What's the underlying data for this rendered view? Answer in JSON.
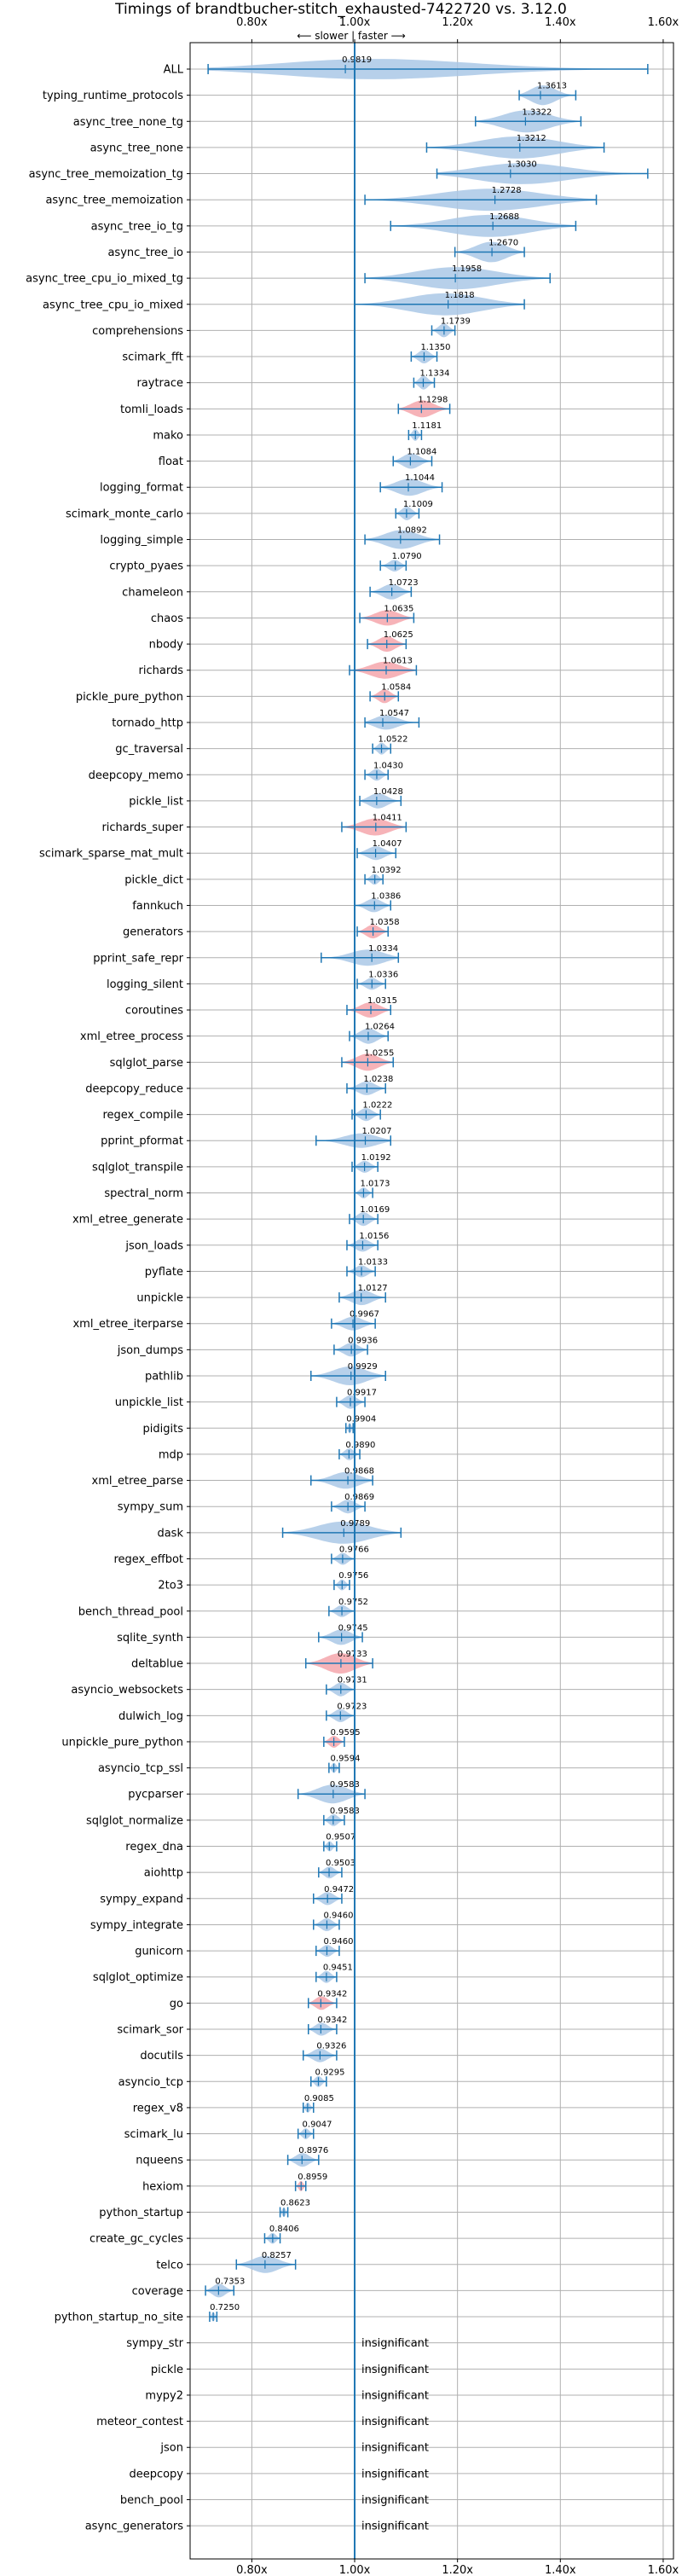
{
  "chart_data": {
    "type": "violin",
    "title": "Timings of brandtbucher-stitch_exhausted-7422720 vs. 3.12.0",
    "direction_label": "⟵ slower | faster ⟶",
    "x_ticks": [
      "0.80x",
      "1.00x",
      "1.20x",
      "1.40x",
      "1.60x"
    ],
    "x_tick_values": [
      0.8,
      1.0,
      1.2,
      1.4,
      1.6
    ],
    "xlim": [
      0.68,
      1.62
    ],
    "reference_line": 1.0,
    "grid": true,
    "colors": {
      "faster": "#aac8e6",
      "slower": "#f4a6ab",
      "line": "#1f77b4",
      "grid": "#b0b0b0"
    },
    "insignificant_label": "insignificant",
    "rows": [
      {
        "name": "ALL",
        "value": 0.9819,
        "min": 0.715,
        "max": 1.57,
        "width": 0.06,
        "highlight": false
      },
      {
        "name": "typing_runtime_protocols",
        "value": 1.3613,
        "min": 1.32,
        "max": 1.43,
        "width": 0.04,
        "highlight": false
      },
      {
        "name": "async_tree_none_tg",
        "value": 1.3322,
        "min": 1.235,
        "max": 1.44,
        "width": 0.05,
        "highlight": false
      },
      {
        "name": "async_tree_none",
        "value": 1.3212,
        "min": 1.14,
        "max": 1.485,
        "width": 0.06,
        "highlight": false
      },
      {
        "name": "async_tree_memoization_tg",
        "value": 1.303,
        "min": 1.16,
        "max": 1.57,
        "width": 0.07,
        "highlight": false
      },
      {
        "name": "async_tree_memoization",
        "value": 1.2728,
        "min": 1.02,
        "max": 1.47,
        "width": 0.08,
        "highlight": false
      },
      {
        "name": "async_tree_io_tg",
        "value": 1.2688,
        "min": 1.07,
        "max": 1.43,
        "width": 0.07,
        "highlight": false
      },
      {
        "name": "async_tree_io",
        "value": 1.267,
        "min": 1.195,
        "max": 1.33,
        "width": 0.04,
        "highlight": false
      },
      {
        "name": "async_tree_cpu_io_mixed_tg",
        "value": 1.1958,
        "min": 1.02,
        "max": 1.38,
        "width": 0.07,
        "highlight": false
      },
      {
        "name": "async_tree_cpu_io_mixed",
        "value": 1.1818,
        "min": 1.0,
        "max": 1.33,
        "width": 0.06,
        "highlight": false
      },
      {
        "name": "comprehensions",
        "value": 1.1739,
        "min": 1.15,
        "max": 1.195,
        "width": 0.02,
        "highlight": false
      },
      {
        "name": "scimark_fft",
        "value": 1.135,
        "min": 1.11,
        "max": 1.16,
        "width": 0.02,
        "highlight": false
      },
      {
        "name": "raytrace",
        "value": 1.1334,
        "min": 1.115,
        "max": 1.155,
        "width": 0.02,
        "highlight": false
      },
      {
        "name": "tomli_loads",
        "value": 1.1298,
        "min": 1.085,
        "max": 1.185,
        "width": 0.03,
        "highlight": true
      },
      {
        "name": "mako",
        "value": 1.1181,
        "min": 1.105,
        "max": 1.13,
        "width": 0.015,
        "highlight": false
      },
      {
        "name": "float",
        "value": 1.1084,
        "min": 1.075,
        "max": 1.15,
        "width": 0.025,
        "highlight": false
      },
      {
        "name": "logging_format",
        "value": 1.1044,
        "min": 1.05,
        "max": 1.17,
        "width": 0.03,
        "highlight": false
      },
      {
        "name": "scimark_monte_carlo",
        "value": 1.1009,
        "min": 1.08,
        "max": 1.125,
        "width": 0.02,
        "highlight": false
      },
      {
        "name": "logging_simple",
        "value": 1.0892,
        "min": 1.02,
        "max": 1.165,
        "width": 0.035,
        "highlight": false
      },
      {
        "name": "crypto_pyaes",
        "value": 1.079,
        "min": 1.05,
        "max": 1.1,
        "width": 0.015,
        "highlight": false
      },
      {
        "name": "chameleon",
        "value": 1.0723,
        "min": 1.03,
        "max": 1.11,
        "width": 0.025,
        "highlight": false
      },
      {
        "name": "chaos",
        "value": 1.0635,
        "min": 1.01,
        "max": 1.115,
        "width": 0.025,
        "highlight": true
      },
      {
        "name": "nbody",
        "value": 1.0625,
        "min": 1.025,
        "max": 1.1,
        "width": 0.025,
        "highlight": true
      },
      {
        "name": "richards",
        "value": 1.0613,
        "min": 0.99,
        "max": 1.12,
        "width": 0.03,
        "highlight": true
      },
      {
        "name": "pickle_pure_python",
        "value": 1.0584,
        "min": 1.03,
        "max": 1.085,
        "width": 0.02,
        "highlight": true
      },
      {
        "name": "tornado_http",
        "value": 1.0547,
        "min": 1.02,
        "max": 1.125,
        "width": 0.025,
        "highlight": false
      },
      {
        "name": "gc_traversal",
        "value": 1.0522,
        "min": 1.035,
        "max": 1.07,
        "width": 0.015,
        "highlight": false
      },
      {
        "name": "deepcopy_memo",
        "value": 1.043,
        "min": 1.02,
        "max": 1.065,
        "width": 0.015,
        "highlight": false
      },
      {
        "name": "pickle_list",
        "value": 1.0428,
        "min": 1.01,
        "max": 1.09,
        "width": 0.025,
        "highlight": false
      },
      {
        "name": "richards_super",
        "value": 1.0411,
        "min": 0.975,
        "max": 1.1,
        "width": 0.03,
        "highlight": true
      },
      {
        "name": "scimark_sparse_mat_mult",
        "value": 1.0407,
        "min": 1.005,
        "max": 1.08,
        "width": 0.02,
        "highlight": false
      },
      {
        "name": "pickle_dict",
        "value": 1.0392,
        "min": 1.02,
        "max": 1.055,
        "width": 0.012,
        "highlight": false
      },
      {
        "name": "fannkuch",
        "value": 1.0386,
        "min": 1.0,
        "max": 1.07,
        "width": 0.02,
        "highlight": false
      },
      {
        "name": "generators",
        "value": 1.0358,
        "min": 1.005,
        "max": 1.065,
        "width": 0.02,
        "highlight": true
      },
      {
        "name": "pprint_safe_repr",
        "value": 1.0334,
        "min": 0.935,
        "max": 1.085,
        "width": 0.03,
        "highlight": false
      },
      {
        "name": "logging_silent",
        "value": 1.0336,
        "min": 1.005,
        "max": 1.06,
        "width": 0.015,
        "highlight": false
      },
      {
        "name": "coroutines",
        "value": 1.0315,
        "min": 0.985,
        "max": 1.07,
        "width": 0.025,
        "highlight": true
      },
      {
        "name": "xml_etree_process",
        "value": 1.0264,
        "min": 0.99,
        "max": 1.065,
        "width": 0.025,
        "highlight": false
      },
      {
        "name": "sqlglot_parse",
        "value": 1.0255,
        "min": 0.975,
        "max": 1.075,
        "width": 0.03,
        "highlight": true
      },
      {
        "name": "deepcopy_reduce",
        "value": 1.0238,
        "min": 0.985,
        "max": 1.06,
        "width": 0.02,
        "highlight": false
      },
      {
        "name": "regex_compile",
        "value": 1.0222,
        "min": 0.995,
        "max": 1.05,
        "width": 0.018,
        "highlight": false
      },
      {
        "name": "pprint_pformat",
        "value": 1.0207,
        "min": 0.925,
        "max": 1.07,
        "width": 0.025,
        "highlight": false
      },
      {
        "name": "sqlglot_transpile",
        "value": 1.0192,
        "min": 0.995,
        "max": 1.045,
        "width": 0.015,
        "highlight": false
      },
      {
        "name": "spectral_norm",
        "value": 1.0173,
        "min": 1.0,
        "max": 1.035,
        "width": 0.012,
        "highlight": false
      },
      {
        "name": "xml_etree_generate",
        "value": 1.0169,
        "min": 0.99,
        "max": 1.045,
        "width": 0.02,
        "highlight": false
      },
      {
        "name": "json_loads",
        "value": 1.0156,
        "min": 0.985,
        "max": 1.045,
        "width": 0.018,
        "highlight": false
      },
      {
        "name": "pyflate",
        "value": 1.0133,
        "min": 0.985,
        "max": 1.04,
        "width": 0.015,
        "highlight": false
      },
      {
        "name": "unpickle",
        "value": 1.0127,
        "min": 0.97,
        "max": 1.06,
        "width": 0.025,
        "highlight": false
      },
      {
        "name": "xml_etree_iterparse",
        "value": 0.9967,
        "min": 0.955,
        "max": 1.04,
        "width": 0.02,
        "highlight": false
      },
      {
        "name": "json_dumps",
        "value": 0.9936,
        "min": 0.96,
        "max": 1.025,
        "width": 0.02,
        "highlight": false
      },
      {
        "name": "pathlib",
        "value": 0.9929,
        "min": 0.915,
        "max": 1.06,
        "width": 0.035,
        "highlight": false
      },
      {
        "name": "unpickle_list",
        "value": 0.9917,
        "min": 0.965,
        "max": 1.02,
        "width": 0.02,
        "highlight": false
      },
      {
        "name": "pidigits",
        "value": 0.9904,
        "min": 0.983,
        "max": 0.997,
        "width": 0.01,
        "highlight": false
      },
      {
        "name": "mdp",
        "value": 0.989,
        "min": 0.97,
        "max": 1.01,
        "width": 0.015,
        "highlight": false
      },
      {
        "name": "xml_etree_parse",
        "value": 0.9868,
        "min": 0.915,
        "max": 1.035,
        "width": 0.03,
        "highlight": false
      },
      {
        "name": "sympy_sum",
        "value": 0.9869,
        "min": 0.955,
        "max": 1.02,
        "width": 0.02,
        "highlight": false
      },
      {
        "name": "dask",
        "value": 0.9789,
        "min": 0.86,
        "max": 1.09,
        "width": 0.05,
        "highlight": false
      },
      {
        "name": "regex_effbot",
        "value": 0.9766,
        "min": 0.955,
        "max": 1.0,
        "width": 0.015,
        "highlight": false
      },
      {
        "name": "2to3",
        "value": 0.9756,
        "min": 0.96,
        "max": 0.99,
        "width": 0.012,
        "highlight": false
      },
      {
        "name": "bench_thread_pool",
        "value": 0.9752,
        "min": 0.95,
        "max": 1.0,
        "width": 0.015,
        "highlight": false
      },
      {
        "name": "sqlite_synth",
        "value": 0.9745,
        "min": 0.93,
        "max": 1.015,
        "width": 0.025,
        "highlight": false
      },
      {
        "name": "deltablue",
        "value": 0.9733,
        "min": 0.905,
        "max": 1.035,
        "width": 0.04,
        "highlight": true
      },
      {
        "name": "asyncio_websockets",
        "value": 0.9731,
        "min": 0.945,
        "max": 1.0,
        "width": 0.02,
        "highlight": false
      },
      {
        "name": "dulwich_log",
        "value": 0.9723,
        "min": 0.945,
        "max": 1.0,
        "width": 0.018,
        "highlight": false
      },
      {
        "name": "unpickle_pure_python",
        "value": 0.9595,
        "min": 0.94,
        "max": 0.98,
        "width": 0.015,
        "highlight": true
      },
      {
        "name": "asyncio_tcp_ssl",
        "value": 0.9594,
        "min": 0.95,
        "max": 0.97,
        "width": 0.01,
        "highlight": false
      },
      {
        "name": "pycparser",
        "value": 0.9583,
        "min": 0.89,
        "max": 1.02,
        "width": 0.035,
        "highlight": false
      },
      {
        "name": "sqlglot_normalize",
        "value": 0.9583,
        "min": 0.94,
        "max": 0.98,
        "width": 0.015,
        "highlight": false
      },
      {
        "name": "regex_dna",
        "value": 0.9507,
        "min": 0.94,
        "max": 0.965,
        "width": 0.01,
        "highlight": false
      },
      {
        "name": "aiohttp",
        "value": 0.9503,
        "min": 0.93,
        "max": 0.975,
        "width": 0.015,
        "highlight": false
      },
      {
        "name": "sympy_expand",
        "value": 0.9472,
        "min": 0.92,
        "max": 0.975,
        "width": 0.018,
        "highlight": false
      },
      {
        "name": "sympy_integrate",
        "value": 0.946,
        "min": 0.92,
        "max": 0.97,
        "width": 0.018,
        "highlight": false
      },
      {
        "name": "gunicorn",
        "value": 0.946,
        "min": 0.925,
        "max": 0.97,
        "width": 0.015,
        "highlight": false
      },
      {
        "name": "sqlglot_optimize",
        "value": 0.9451,
        "min": 0.925,
        "max": 0.965,
        "width": 0.015,
        "highlight": false
      },
      {
        "name": "go",
        "value": 0.9342,
        "min": 0.91,
        "max": 0.965,
        "width": 0.02,
        "highlight": true
      },
      {
        "name": "scimark_sor",
        "value": 0.9342,
        "min": 0.91,
        "max": 0.965,
        "width": 0.018,
        "highlight": false
      },
      {
        "name": "docutils",
        "value": 0.9326,
        "min": 0.9,
        "max": 0.965,
        "width": 0.02,
        "highlight": false
      },
      {
        "name": "asyncio_tcp",
        "value": 0.9295,
        "min": 0.915,
        "max": 0.945,
        "width": 0.012,
        "highlight": false
      },
      {
        "name": "regex_v8",
        "value": 0.9085,
        "min": 0.9,
        "max": 0.92,
        "width": 0.01,
        "highlight": false
      },
      {
        "name": "scimark_lu",
        "value": 0.9047,
        "min": 0.89,
        "max": 0.92,
        "width": 0.012,
        "highlight": false
      },
      {
        "name": "nqueens",
        "value": 0.8976,
        "min": 0.87,
        "max": 0.93,
        "width": 0.02,
        "highlight": false
      },
      {
        "name": "hexiom",
        "value": 0.8959,
        "min": 0.885,
        "max": 0.905,
        "width": 0.01,
        "highlight": true
      },
      {
        "name": "python_startup",
        "value": 0.8623,
        "min": 0.855,
        "max": 0.87,
        "width": 0.008,
        "highlight": false
      },
      {
        "name": "create_gc_cycles",
        "value": 0.8406,
        "min": 0.825,
        "max": 0.855,
        "width": 0.012,
        "highlight": false
      },
      {
        "name": "telco",
        "value": 0.8257,
        "min": 0.77,
        "max": 0.885,
        "width": 0.03,
        "highlight": false
      },
      {
        "name": "coverage",
        "value": 0.7353,
        "min": 0.71,
        "max": 0.765,
        "width": 0.02,
        "highlight": false
      },
      {
        "name": "python_startup_no_site",
        "value": 0.725,
        "min": 0.718,
        "max": 0.732,
        "width": 0.008,
        "highlight": false
      },
      {
        "name": "sympy_str",
        "value": null
      },
      {
        "name": "pickle",
        "value": null
      },
      {
        "name": "mypy2",
        "value": null
      },
      {
        "name": "meteor_contest",
        "value": null
      },
      {
        "name": "json",
        "value": null
      },
      {
        "name": "deepcopy",
        "value": null
      },
      {
        "name": "bench_pool",
        "value": null
      },
      {
        "name": "async_generators",
        "value": null
      }
    ]
  }
}
